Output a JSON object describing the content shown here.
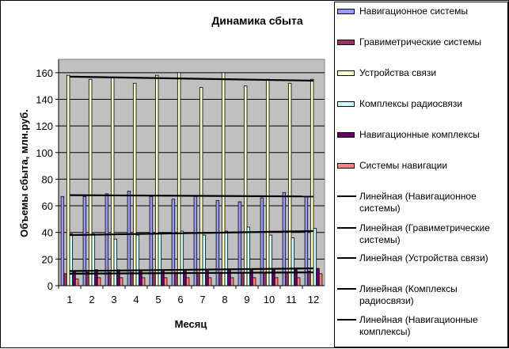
{
  "chart_data": {
    "type": "bar",
    "title": "Динамика сбыта",
    "xlabel": "Месяц",
    "ylabel": "Объемы сбыта, млн.руб.",
    "categories": [
      "1",
      "2",
      "3",
      "4",
      "5",
      "6",
      "7",
      "8",
      "9",
      "10",
      "11",
      "12"
    ],
    "ylim": [
      0,
      170
    ],
    "yticks": [
      0,
      20,
      40,
      60,
      80,
      100,
      120,
      140,
      160
    ],
    "grid": true,
    "legend_position": "right",
    "series": [
      {
        "name": "Навигационное системы",
        "color": "#9999ff",
        "values": [
          67,
          67,
          69,
          71,
          67,
          65,
          67,
          64,
          63,
          66,
          70,
          67
        ]
      },
      {
        "name": "Гравиметрические системы",
        "color": "#993366",
        "values": [
          9,
          10,
          10,
          10,
          10,
          10,
          10,
          10,
          10,
          10,
          10,
          11
        ]
      },
      {
        "name": "Устройства связи",
        "color": "#ffffcc",
        "values": [
          158,
          155,
          156,
          152,
          158,
          160,
          149,
          160,
          150,
          155,
          152,
          155
        ]
      },
      {
        "name": "Комплексы радиосвязи",
        "color": "#ccffff",
        "values": [
          39,
          39,
          35,
          38,
          39,
          41,
          38,
          41,
          44,
          38,
          36,
          43
        ]
      },
      {
        "name": "Навигационные комплексы",
        "color": "#660066",
        "values": [
          11,
          12,
          12,
          12,
          12,
          12,
          12,
          12,
          12,
          12,
          12,
          13
        ]
      },
      {
        "name": "Системы навигации",
        "color": "#ff8080",
        "values": [
          5,
          6,
          6,
          6,
          6,
          6,
          6,
          6,
          6,
          6,
          6,
          9
        ]
      }
    ],
    "trendlines": [
      {
        "name": "Линейная (Навигационное системы)",
        "start": 68,
        "end": 67
      },
      {
        "name": "Линейная (Гравиметрические системы)",
        "start": 9,
        "end": 10
      },
      {
        "name": "Линейная (Устройства связи)",
        "start": 157,
        "end": 154
      },
      {
        "name": "Линейная (Комплексы радиосвязи)",
        "start": 38,
        "end": 41
      },
      {
        "name": "Линейная (Навигационные комплексы)",
        "start": 11,
        "end": 13
      }
    ]
  }
}
